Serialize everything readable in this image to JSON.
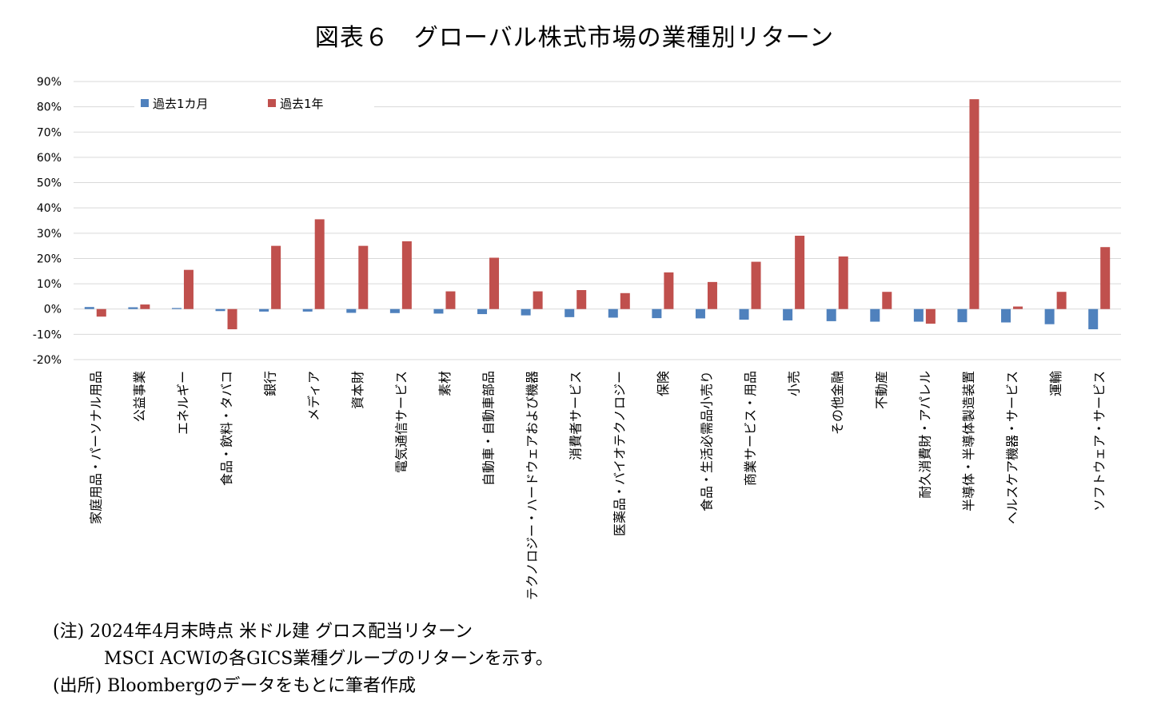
{
  "title": "図表６　グローバル株式市場の業種別リターン",
  "notes": {
    "line1": "(注) 2024年4月末時点 米ドル建 グロス配当リターン",
    "line2": "MSCI ACWIの各GICS業種グループのリターンを示す。",
    "line3": "(出所) Bloombergのデータをもとに筆者作成"
  },
  "chart_data": {
    "type": "bar",
    "title": "図表６　グローバル株式市場の業種別リターン",
    "xlabel": "",
    "ylabel": "",
    "ylim": [
      -20,
      90
    ],
    "yticks": [
      90,
      80,
      70,
      60,
      50,
      40,
      30,
      20,
      10,
      0,
      -10,
      -20
    ],
    "ytick_labels": [
      "90%",
      "80%",
      "70%",
      "60%",
      "50%",
      "40%",
      "30%",
      "20%",
      "10%",
      "0%",
      "-10%",
      "-20%"
    ],
    "grid": true,
    "legend_position": "top-left",
    "categories": [
      "家庭用品・パーソナル用品",
      "公益事業",
      "エネルギー",
      "食品・飲料・タバコ",
      "銀行",
      "メディア",
      "資本財",
      "電気通信サービス",
      "素材",
      "自動車・自動車部品",
      "テクノロジー・ハードウェアおよび機器",
      "消費者サービス",
      "医薬品・バイオテクノロジー",
      "保険",
      "食品・生活必需品小売り",
      "商業サービス・用品",
      "小売",
      "その他金融",
      "不動産",
      "耐久消費財・アパレル",
      "半導体・半導体製造装置",
      "ヘルスケア機器・サービス",
      "運輸",
      "ソフトウェア・サービス"
    ],
    "series": [
      {
        "name": "過去1カ月",
        "color": "#4f81bd",
        "values": [
          0.8,
          0.7,
          0.4,
          -0.8,
          -1.0,
          -1.0,
          -1.5,
          -1.6,
          -1.8,
          -2.0,
          -2.5,
          -3.2,
          -3.4,
          -3.6,
          -3.7,
          -4.2,
          -4.5,
          -4.8,
          -5.0,
          -5.0,
          -5.2,
          -5.3,
          -6.0,
          -8.0
        ]
      },
      {
        "name": "過去1年",
        "color": "#c0504d",
        "values": [
          -3.0,
          1.8,
          15.5,
          -8.0,
          25.0,
          35.5,
          25.0,
          26.8,
          7.0,
          20.3,
          7.0,
          7.5,
          6.3,
          14.5,
          10.7,
          18.7,
          29.0,
          20.8,
          6.8,
          -5.8,
          83.0,
          1.0,
          6.8,
          24.5
        ]
      }
    ]
  }
}
